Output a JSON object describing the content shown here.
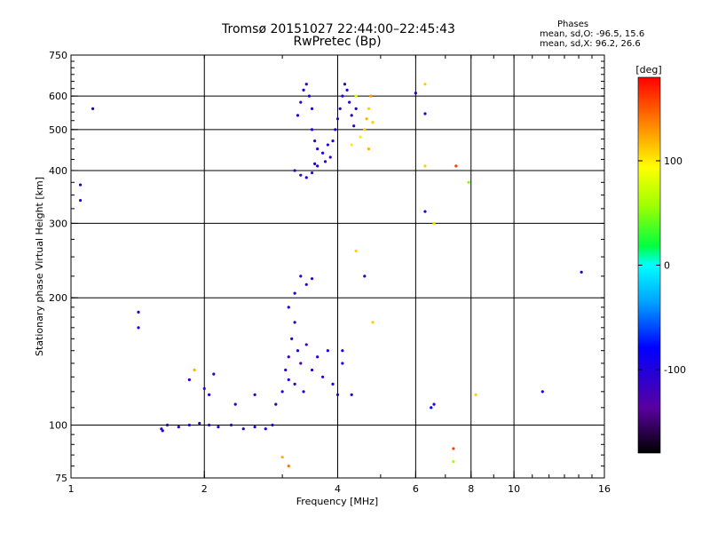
{
  "chart_data": {
    "type": "scatter",
    "title": "Tromsø 20151027 22:44:00–22:45:43",
    "subtitle": "RwPretec (Bp)",
    "xlabel": "Frequency [MHz]",
    "ylabel": "Stationary phase Virtual Height [km]",
    "x_scale": "log",
    "y_scale": "log",
    "xlim": [
      1,
      16
    ],
    "ylim": [
      75,
      750
    ],
    "x_ticks": [
      1,
      2,
      4,
      6,
      8,
      10,
      16
    ],
    "x_tick_labels": [
      "1",
      "2",
      "4",
      "6",
      "8",
      "10",
      "16"
    ],
    "y_ticks": [
      75,
      100,
      200,
      300,
      400,
      500,
      600,
      750
    ],
    "y_tick_labels": [
      "75",
      "100",
      "200",
      "300",
      "400",
      "500",
      "600",
      "750"
    ],
    "x_grid": [
      2,
      4,
      6,
      8,
      10
    ],
    "y_grid": [
      100,
      200,
      300,
      400,
      500,
      600
    ],
    "phase_stats": {
      "title": "Phases",
      "o_text": "mean, sd,O: -96.5, 15.6",
      "x_text": "mean, sd,X:  96.2, 26.6"
    },
    "colorbar": {
      "label": "[deg]",
      "range": [
        -180,
        180
      ],
      "ticks": [
        100,
        0,
        -100
      ],
      "tick_labels": [
        "100",
        "0",
        "-100"
      ]
    },
    "series": [
      {
        "points": [
          [
            1.05,
            370,
            -100
          ],
          [
            1.05,
            340,
            -100
          ],
          [
            1.12,
            560,
            -100
          ],
          [
            1.42,
            185,
            -100
          ],
          [
            1.42,
            170,
            -100
          ],
          [
            1.6,
            98,
            -110
          ],
          [
            1.61,
            97,
            -110
          ],
          [
            1.65,
            100,
            -100
          ],
          [
            1.75,
            99,
            -110
          ],
          [
            1.85,
            100,
            -100
          ],
          [
            1.95,
            101,
            -100
          ],
          [
            2.05,
            100,
            -110
          ],
          [
            2.15,
            99,
            -100
          ],
          [
            2.3,
            100,
            -110
          ],
          [
            2.45,
            98,
            -100
          ],
          [
            2.6,
            99,
            -110
          ],
          [
            2.75,
            98,
            -100
          ],
          [
            2.85,
            100,
            -110
          ],
          [
            1.85,
            128,
            -100
          ],
          [
            2.0,
            122,
            -110
          ],
          [
            2.05,
            118,
            -100
          ],
          [
            2.1,
            132,
            -100
          ],
          [
            2.35,
            112,
            -100
          ],
          [
            2.6,
            118,
            -110
          ],
          [
            2.9,
            112,
            -100
          ],
          [
            3.0,
            120,
            -100
          ],
          [
            3.05,
            135,
            -110
          ],
          [
            3.1,
            128,
            -100
          ],
          [
            3.1,
            145,
            -120
          ],
          [
            3.15,
            160,
            -100
          ],
          [
            3.2,
            175,
            -110
          ],
          [
            3.2,
            125,
            -110
          ],
          [
            3.25,
            150,
            -100
          ],
          [
            3.3,
            140,
            -130
          ],
          [
            3.35,
            120,
            -100
          ],
          [
            3.4,
            155,
            -120
          ],
          [
            3.5,
            135,
            -110
          ],
          [
            3.6,
            145,
            -100
          ],
          [
            3.7,
            130,
            -110
          ],
          [
            3.8,
            150,
            -100
          ],
          [
            3.9,
            125,
            -100
          ],
          [
            4.0,
            118,
            -100
          ],
          [
            4.1,
            140,
            -100
          ],
          [
            3.3,
            225,
            -110
          ],
          [
            3.4,
            215,
            -100
          ],
          [
            3.5,
            222,
            -110
          ],
          [
            3.2,
            205,
            -100
          ],
          [
            3.1,
            190,
            -110
          ],
          [
            3.2,
            400,
            -100
          ],
          [
            3.3,
            390,
            -110
          ],
          [
            3.4,
            385,
            -100
          ],
          [
            3.5,
            395,
            -110
          ],
          [
            3.55,
            415,
            -100
          ],
          [
            3.6,
            410,
            -110
          ],
          [
            3.7,
            440,
            -100
          ],
          [
            3.75,
            420,
            -110
          ],
          [
            3.8,
            460,
            -100
          ],
          [
            3.85,
            430,
            -110
          ],
          [
            3.9,
            470,
            -100
          ],
          [
            3.95,
            500,
            -110
          ],
          [
            4.0,
            530,
            -100
          ],
          [
            4.05,
            560,
            -110
          ],
          [
            4.1,
            600,
            -100
          ],
          [
            4.15,
            640,
            -110
          ],
          [
            4.2,
            620,
            -100
          ],
          [
            4.25,
            580,
            -110
          ],
          [
            4.3,
            540,
            -100
          ],
          [
            4.35,
            510,
            -110
          ],
          [
            3.25,
            540,
            -100
          ],
          [
            3.3,
            580,
            -110
          ],
          [
            3.35,
            620,
            -100
          ],
          [
            3.4,
            640,
            -110
          ],
          [
            3.45,
            600,
            -100
          ],
          [
            3.5,
            560,
            -110
          ],
          [
            3.5,
            500,
            -100
          ],
          [
            3.55,
            470,
            -110
          ],
          [
            3.6,
            450,
            -100
          ],
          [
            4.4,
            560,
            -100
          ],
          [
            4.5,
            480,
            100
          ],
          [
            4.6,
            500,
            110
          ],
          [
            4.65,
            530,
            120
          ],
          [
            4.7,
            560,
            110
          ],
          [
            4.7,
            450,
            120
          ],
          [
            4.75,
            600,
            130
          ],
          [
            4.8,
            520,
            110
          ],
          [
            4.3,
            460,
            100
          ],
          [
            4.4,
            600,
            80
          ],
          [
            6.0,
            610,
            -100
          ],
          [
            6.3,
            640,
            110
          ],
          [
            6.3,
            545,
            -110
          ],
          [
            6.3,
            410,
            110
          ],
          [
            6.3,
            320,
            -100
          ],
          [
            6.6,
            300,
            110
          ],
          [
            7.4,
            410,
            160
          ],
          [
            7.9,
            375,
            50
          ],
          [
            6.6,
            112,
            -100
          ],
          [
            6.5,
            110,
            -80
          ],
          [
            8.2,
            118,
            110
          ],
          [
            7.3,
            88,
            160
          ],
          [
            7.3,
            82,
            60
          ],
          [
            11.6,
            120,
            -100
          ],
          [
            14.2,
            230,
            -110
          ],
          [
            4.6,
            225,
            -100
          ],
          [
            4.4,
            258,
            110
          ],
          [
            4.8,
            175,
            110
          ],
          [
            4.1,
            150,
            -100
          ],
          [
            3.0,
            84,
            120
          ],
          [
            3.1,
            80,
            140
          ],
          [
            1.9,
            135,
            120
          ],
          [
            4.3,
            118,
            -100
          ]
        ]
      }
    ]
  }
}
